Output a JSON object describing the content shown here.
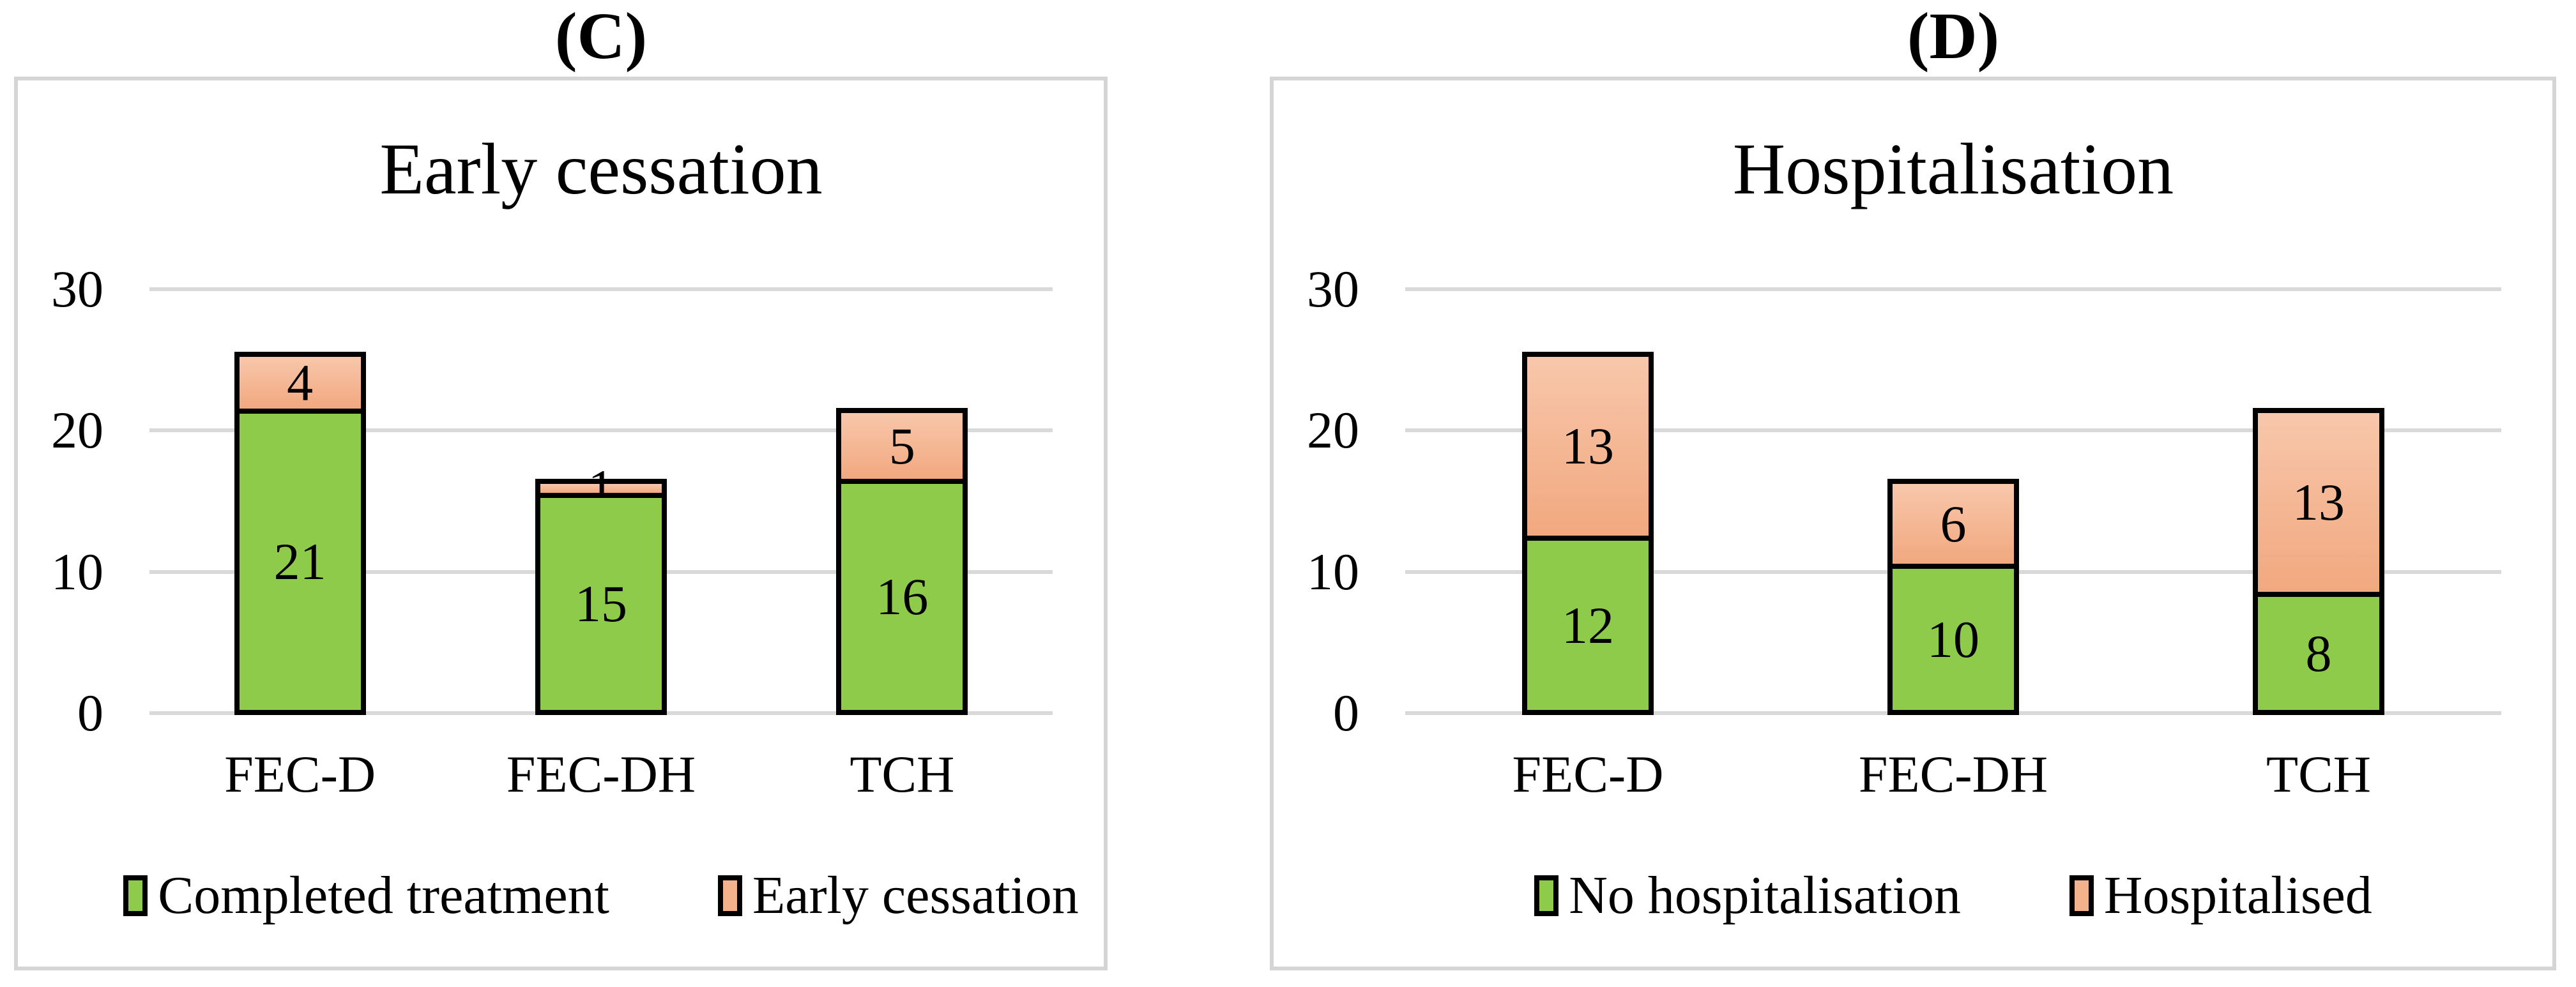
{
  "figure": {
    "background": "#ffffff",
    "panel_border_color": "#d5d5d5",
    "gridline_color": "#d9d9d9",
    "bar_outline_color": "#000000",
    "green_fill": "#8fcb4a",
    "salmon_fill_top": "#f8c7ab",
    "salmon_fill_bottom": "#f1a87f",
    "salmon_swatch_fill": "#f4b28c"
  },
  "chart_data": [
    {
      "type": "bar",
      "stacked": true,
      "panel_label": "(C)",
      "title": "Early cessation",
      "categories": [
        "FEC-D",
        "FEC-DH",
        "TCH"
      ],
      "series": [
        {
          "name": "Completed treatment",
          "color": "#8fcb4a",
          "values": [
            21,
            15,
            16
          ]
        },
        {
          "name": "Early cessation",
          "color": "#f4b28c",
          "values": [
            4,
            1,
            5
          ]
        }
      ],
      "ylim": [
        0,
        30
      ],
      "yticks": [
        0,
        10,
        20,
        30
      ],
      "grid": true,
      "legend_position": "bottom"
    },
    {
      "type": "bar",
      "stacked": true,
      "panel_label": "(D)",
      "title": "Hospitalisation",
      "categories": [
        "FEC-D",
        "FEC-DH",
        "TCH"
      ],
      "series": [
        {
          "name": "No hospitalisation",
          "color": "#8fcb4a",
          "values": [
            12,
            10,
            8
          ]
        },
        {
          "name": "Hospitalised",
          "color": "#f4b28c",
          "values": [
            13,
            6,
            13
          ]
        }
      ],
      "ylim": [
        0,
        30
      ],
      "yticks": [
        0,
        10,
        20,
        30
      ],
      "grid": true,
      "legend_position": "bottom"
    }
  ]
}
